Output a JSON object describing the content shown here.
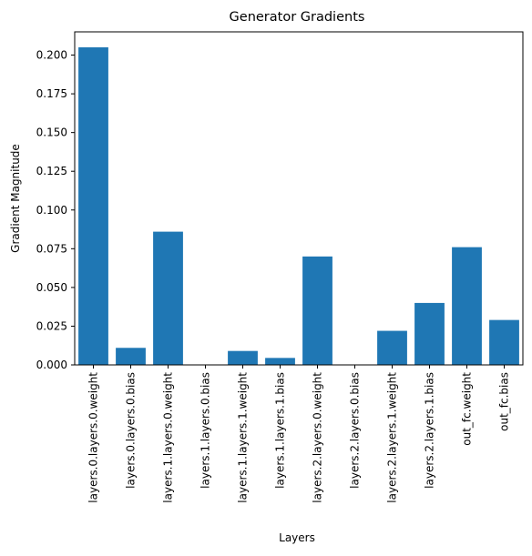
{
  "chart_data": {
    "type": "bar",
    "title": "Generator Gradients",
    "xlabel": "Layers",
    "ylabel": "Gradient Magnitude",
    "ylim": [
      0,
      0.215
    ],
    "grid": false,
    "bar_color": "#1f77b4",
    "categories": [
      "layers.0.layers.0.weight",
      "layers.0.layers.0.bias",
      "layers.1.layers.0.weight",
      "layers.1.layers.0.bias",
      "layers.1.layers.1.weight",
      "layers.1.layers.1.bias",
      "layers.2.layers.0.weight",
      "layers.2.layers.0.bias",
      "layers.2.layers.1.weight",
      "layers.2.layers.1.bias",
      "out_fc.weight",
      "out_fc.bias"
    ],
    "values": [
      0.205,
      0.011,
      0.086,
      0.0,
      0.009,
      0.0045,
      0.07,
      0.0,
      0.022,
      0.04,
      0.076,
      0.029
    ],
    "yticks": [
      "0.000",
      "0.025",
      "0.050",
      "0.075",
      "0.100",
      "0.125",
      "0.150",
      "0.175",
      "0.200"
    ]
  }
}
